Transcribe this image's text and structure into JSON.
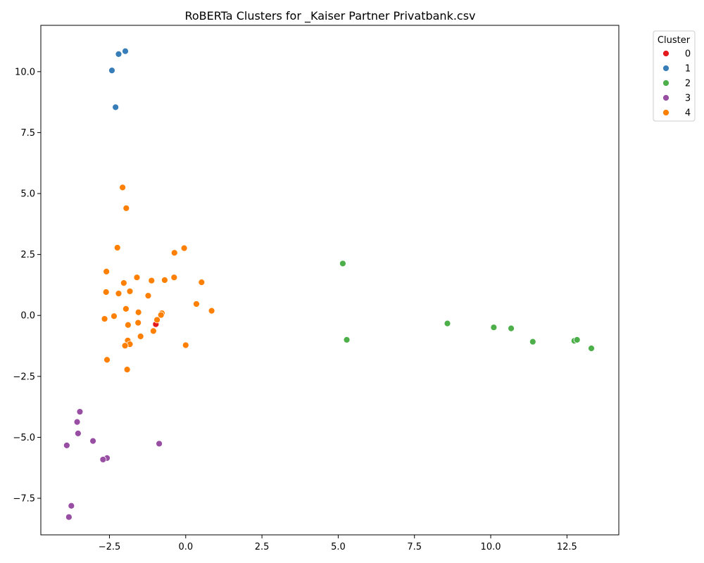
{
  "chart_data": {
    "type": "scatter",
    "title": "RoBERTa Clusters for _Kaiser Partner Privatbank.csv",
    "xlabel": "",
    "ylabel": "",
    "xlim": [
      -4.75,
      14.2
    ],
    "ylim": [
      -9.0,
      11.9
    ],
    "x_ticks": [
      -2.5,
      0.0,
      2.5,
      5.0,
      7.5,
      10.0,
      12.5
    ],
    "x_tick_labels": [
      "−2.5",
      "0.0",
      "2.5",
      "5.0",
      "7.5",
      "10.0",
      "12.5"
    ],
    "y_ticks": [
      -7.5,
      -5.0,
      -2.5,
      0.0,
      2.5,
      5.0,
      7.5,
      10.0
    ],
    "y_tick_labels": [
      "−7.5",
      "−5.0",
      "−2.5",
      "0.0",
      "2.5",
      "5.0",
      "7.5",
      "10.0"
    ],
    "grid": false,
    "legend": {
      "title": "Cluster",
      "placement": "outside-top-right",
      "entries": [
        "0",
        "1",
        "2",
        "3",
        "4"
      ]
    },
    "series": [
      {
        "name": "0",
        "color": "#e41a1c",
        "points": [
          [
            -0.98,
            -0.36
          ]
        ]
      },
      {
        "name": "1",
        "color": "#377eb8",
        "points": [
          [
            -2.2,
            10.72
          ],
          [
            -1.98,
            10.84
          ],
          [
            -2.42,
            10.05
          ],
          [
            -2.3,
            8.54
          ]
        ]
      },
      {
        "name": "2",
        "color": "#4daf4a",
        "points": [
          [
            5.15,
            2.13
          ],
          [
            5.28,
            -1.0
          ],
          [
            8.58,
            -0.33
          ],
          [
            10.1,
            -0.49
          ],
          [
            10.67,
            -0.53
          ],
          [
            11.38,
            -1.08
          ],
          [
            12.74,
            -1.04
          ],
          [
            12.83,
            -1.0
          ],
          [
            13.3,
            -1.35
          ]
        ]
      },
      {
        "name": "3",
        "color": "#984ea3",
        "points": [
          [
            -3.47,
            -3.95
          ],
          [
            -3.56,
            -4.37
          ],
          [
            -3.53,
            -4.84
          ],
          [
            -3.04,
            -5.15
          ],
          [
            -3.9,
            -5.33
          ],
          [
            -2.58,
            -5.85
          ],
          [
            -2.71,
            -5.91
          ],
          [
            -0.87,
            -5.26
          ],
          [
            -3.75,
            -7.81
          ],
          [
            -3.83,
            -8.27
          ]
        ]
      },
      {
        "name": "4",
        "color": "#ff7f00",
        "points": [
          [
            -2.07,
            5.25
          ],
          [
            -1.95,
            4.4
          ],
          [
            -2.24,
            2.78
          ],
          [
            -0.37,
            2.57
          ],
          [
            -0.05,
            2.76
          ],
          [
            -2.6,
            1.8
          ],
          [
            -1.6,
            1.56
          ],
          [
            -0.38,
            1.56
          ],
          [
            -0.69,
            1.45
          ],
          [
            -1.12,
            1.43
          ],
          [
            0.52,
            1.36
          ],
          [
            -2.03,
            1.33
          ],
          [
            -2.61,
            0.96
          ],
          [
            -1.83,
            0.99
          ],
          [
            -2.2,
            0.9
          ],
          [
            -1.23,
            0.81
          ],
          [
            0.35,
            0.47
          ],
          [
            -1.96,
            0.27
          ],
          [
            0.85,
            0.19
          ],
          [
            -1.55,
            0.13
          ],
          [
            -0.78,
            0.09
          ],
          [
            -0.81,
            0.02
          ],
          [
            -2.35,
            -0.03
          ],
          [
            -2.66,
            -0.14
          ],
          [
            -0.94,
            -0.18
          ],
          [
            -1.56,
            -0.3
          ],
          [
            -1.89,
            -0.39
          ],
          [
            -1.06,
            -0.64
          ],
          [
            -1.48,
            -0.86
          ],
          [
            -1.9,
            -1.03
          ],
          [
            -1.83,
            -1.18
          ],
          [
            -1.99,
            -1.24
          ],
          [
            0.0,
            -1.22
          ],
          [
            -2.58,
            -1.82
          ],
          [
            -1.92,
            -2.22
          ]
        ]
      }
    ]
  }
}
